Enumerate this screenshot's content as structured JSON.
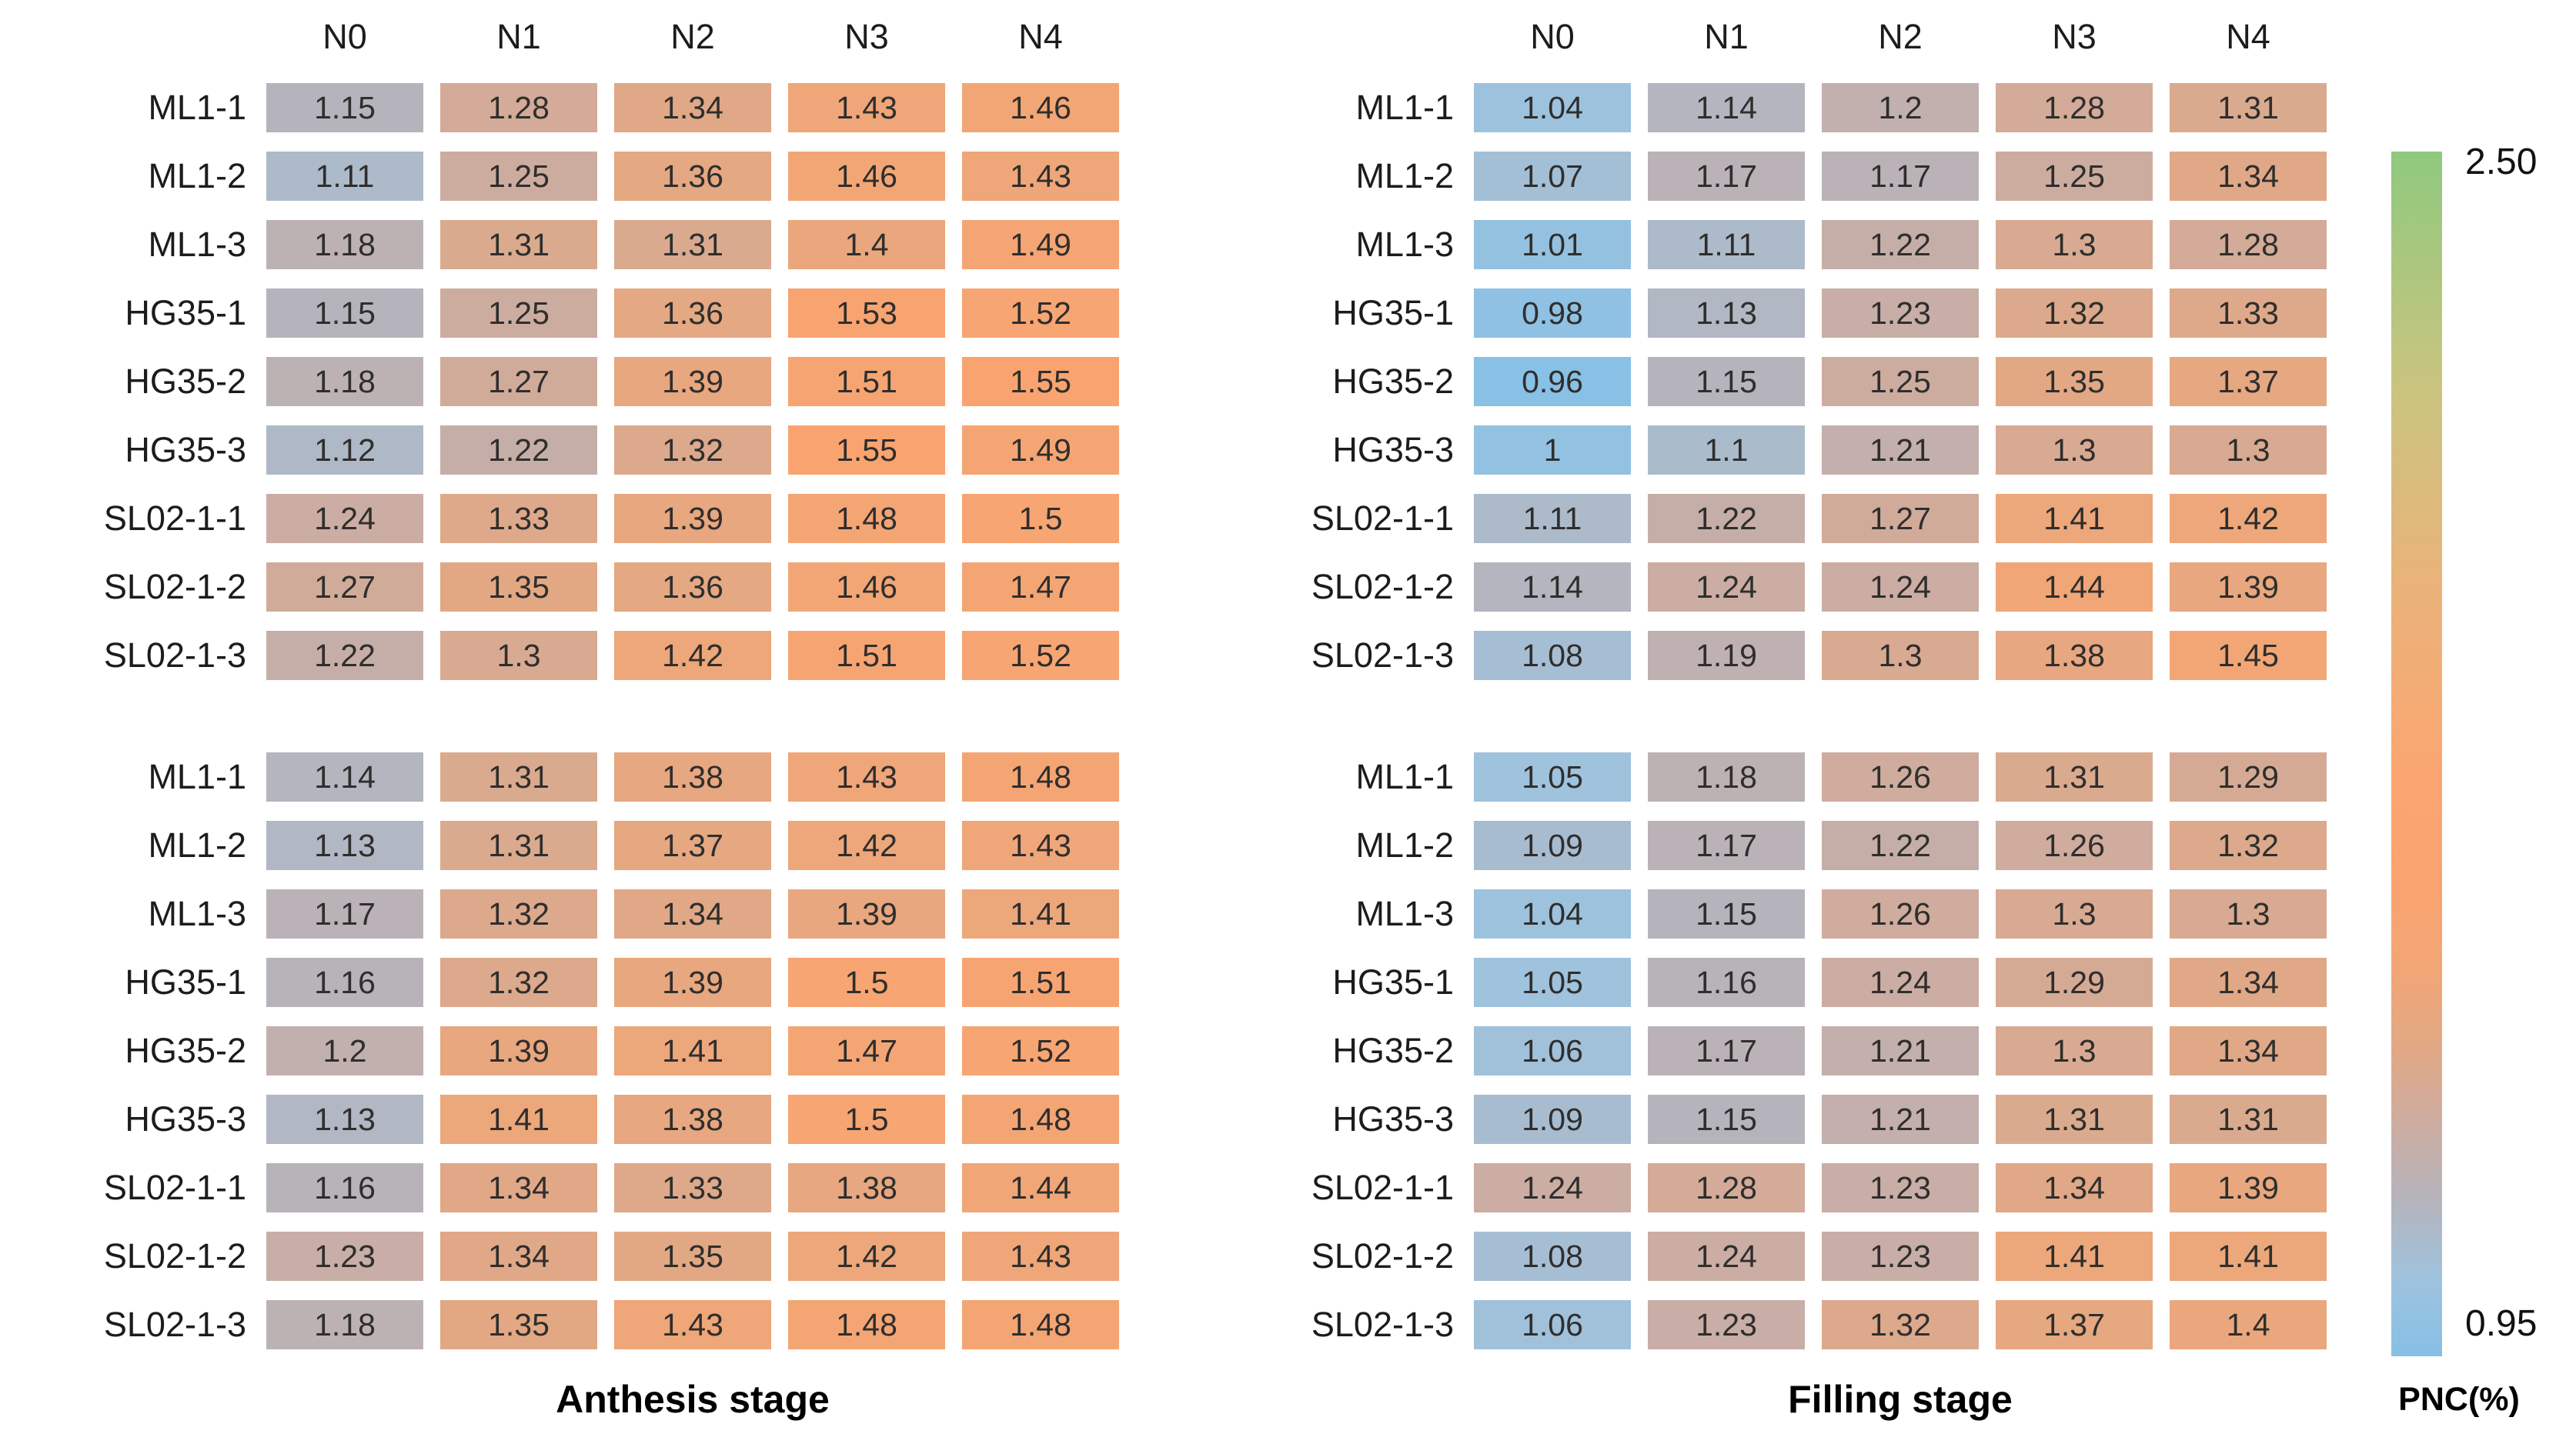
{
  "chart_data": {
    "type": "heatmap",
    "columns": [
      "N0",
      "N1",
      "N2",
      "N3",
      "N4"
    ],
    "rows": [
      "ML1-1",
      "ML1-2",
      "ML1-3",
      "HG35-1",
      "HG35-2",
      "HG35-3",
      "SL02-1-1",
      "SL02-1-2",
      "SL02-1-3"
    ],
    "panels": [
      {
        "caption": "Anthesis stage",
        "blocks": [
          [
            [
              1.15,
              1.28,
              1.34,
              1.43,
              1.46
            ],
            [
              1.11,
              1.25,
              1.36,
              1.46,
              1.43
            ],
            [
              1.18,
              1.31,
              1.31,
              1.4,
              1.49
            ],
            [
              1.15,
              1.25,
              1.36,
              1.53,
              1.52
            ],
            [
              1.18,
              1.27,
              1.39,
              1.51,
              1.55
            ],
            [
              1.12,
              1.22,
              1.32,
              1.55,
              1.49
            ],
            [
              1.24,
              1.33,
              1.39,
              1.48,
              1.5
            ],
            [
              1.27,
              1.35,
              1.36,
              1.46,
              1.47
            ],
            [
              1.22,
              1.3,
              1.42,
              1.51,
              1.52
            ]
          ],
          [
            [
              1.14,
              1.31,
              1.38,
              1.43,
              1.48
            ],
            [
              1.13,
              1.31,
              1.37,
              1.42,
              1.43
            ],
            [
              1.17,
              1.32,
              1.34,
              1.39,
              1.41
            ],
            [
              1.16,
              1.32,
              1.39,
              1.5,
              1.51
            ],
            [
              1.2,
              1.39,
              1.41,
              1.47,
              1.52
            ],
            [
              1.13,
              1.41,
              1.38,
              1.5,
              1.48
            ],
            [
              1.16,
              1.34,
              1.33,
              1.38,
              1.44
            ],
            [
              1.23,
              1.34,
              1.35,
              1.42,
              1.43
            ],
            [
              1.18,
              1.35,
              1.43,
              1.48,
              1.48
            ]
          ]
        ]
      },
      {
        "caption": "Filling stage",
        "blocks": [
          [
            [
              1.04,
              1.14,
              1.2,
              1.28,
              1.31
            ],
            [
              1.07,
              1.17,
              1.17,
              1.25,
              1.34
            ],
            [
              1.01,
              1.11,
              1.22,
              1.3,
              1.28
            ],
            [
              0.98,
              1.13,
              1.23,
              1.32,
              1.33
            ],
            [
              0.96,
              1.15,
              1.25,
              1.35,
              1.37
            ],
            [
              1,
              1.1,
              1.21,
              1.3,
              1.3
            ],
            [
              1.11,
              1.22,
              1.27,
              1.41,
              1.42
            ],
            [
              1.14,
              1.24,
              1.24,
              1.44,
              1.39
            ],
            [
              1.08,
              1.19,
              1.3,
              1.38,
              1.45
            ]
          ],
          [
            [
              1.05,
              1.18,
              1.26,
              1.31,
              1.29
            ],
            [
              1.09,
              1.17,
              1.22,
              1.26,
              1.32
            ],
            [
              1.04,
              1.15,
              1.26,
              1.3,
              1.3
            ],
            [
              1.05,
              1.16,
              1.24,
              1.29,
              1.34
            ],
            [
              1.06,
              1.17,
              1.21,
              1.3,
              1.34
            ],
            [
              1.09,
              1.15,
              1.21,
              1.31,
              1.31
            ],
            [
              1.24,
              1.28,
              1.23,
              1.34,
              1.39
            ],
            [
              1.08,
              1.24,
              1.23,
              1.41,
              1.41
            ],
            [
              1.06,
              1.23,
              1.32,
              1.37,
              1.4
            ]
          ]
        ]
      }
    ],
    "colorbar": {
      "title": "PNC(%)",
      "min": 0.95,
      "max": 2.5,
      "tick_labels": [
        "2.50",
        "0.95"
      ],
      "stops": [
        {
          "v": 0.95,
          "c": "#86c0e6"
        },
        {
          "v": 1.05,
          "c": "#9fc2dd"
        },
        {
          "v": 1.15,
          "c": "#b5b4bc"
        },
        {
          "v": 1.25,
          "c": "#cdaca0"
        },
        {
          "v": 1.35,
          "c": "#e2a884"
        },
        {
          "v": 1.45,
          "c": "#f2a675"
        },
        {
          "v": 1.55,
          "c": "#f9a470"
        },
        {
          "v": 1.7,
          "c": "#fba671"
        },
        {
          "v": 1.95,
          "c": "#e9b37a"
        },
        {
          "v": 2.2,
          "c": "#c9c47f"
        },
        {
          "v": 2.5,
          "c": "#8fc97e"
        }
      ]
    },
    "grid": false,
    "legend_position": "right"
  }
}
